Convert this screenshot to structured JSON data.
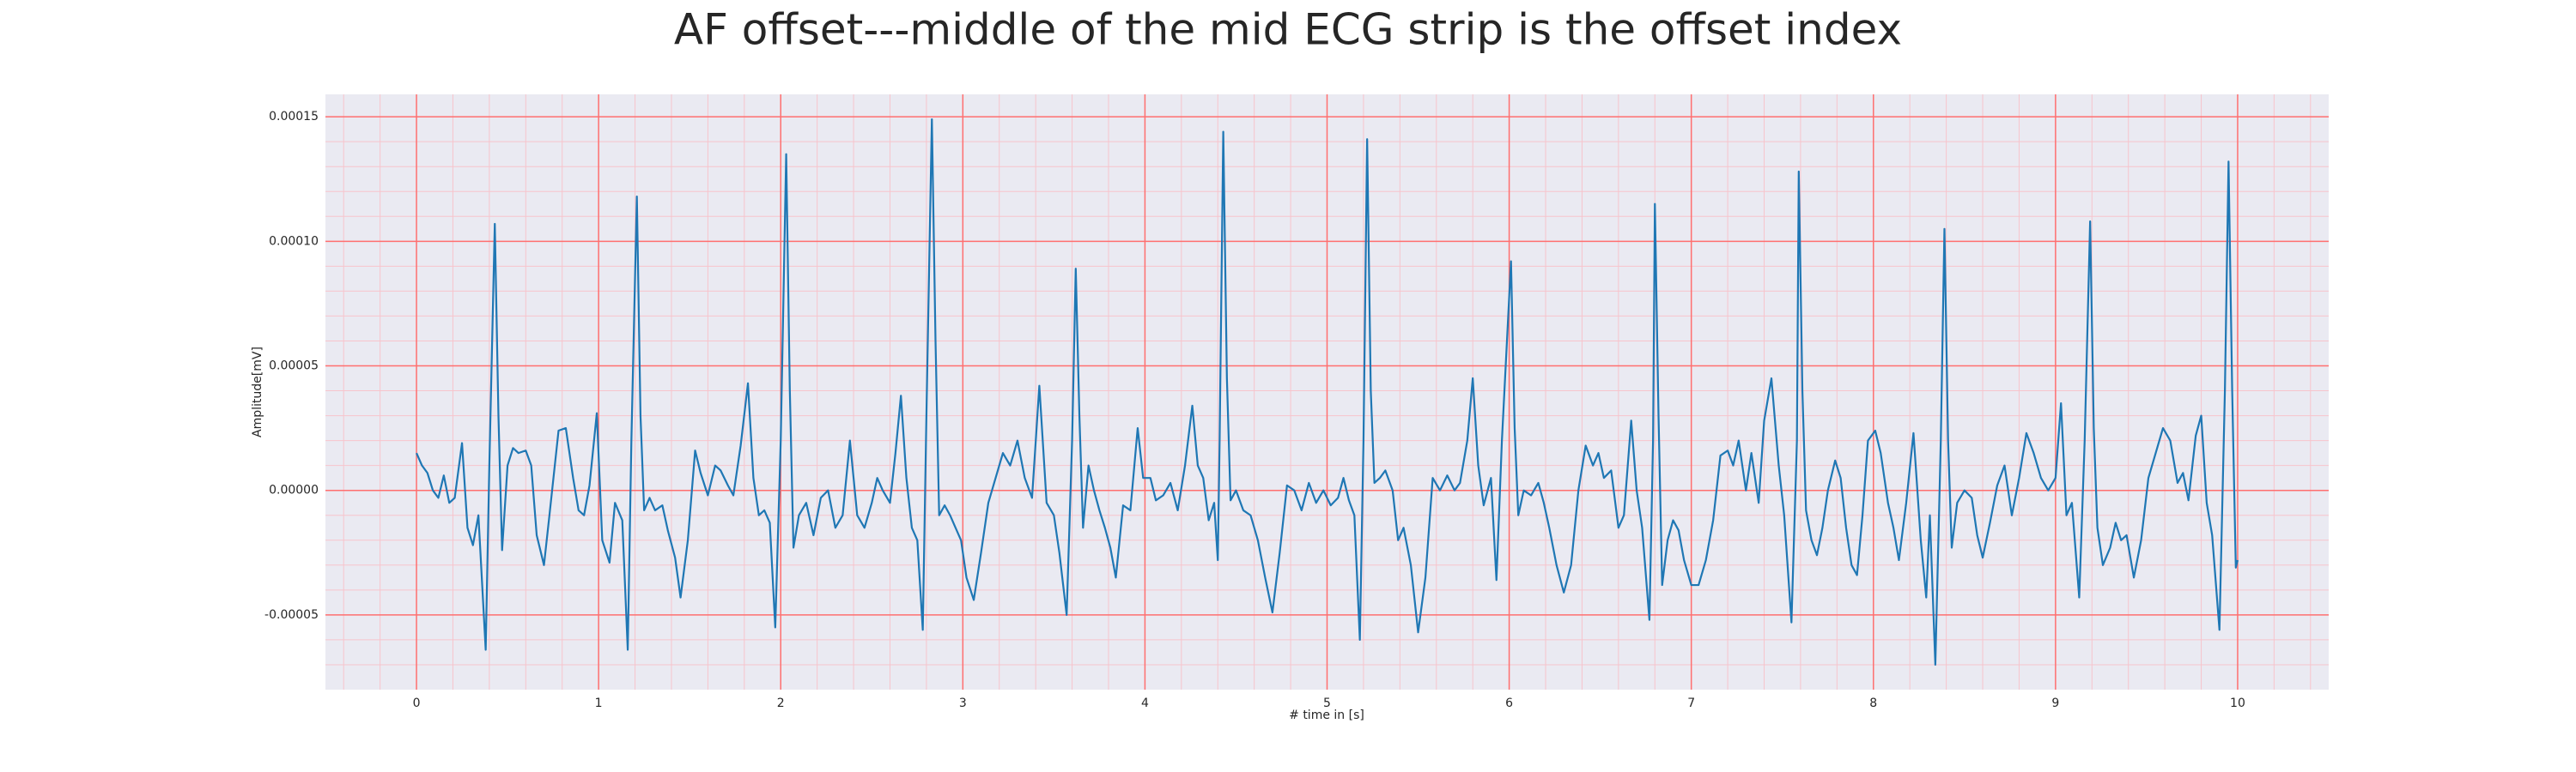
{
  "chart_data": {
    "type": "line",
    "title": "AF offset---middle of the mid ECG strip is the offset index",
    "xlabel": "# time in [s]",
    "ylabel": "Amplitude[mV]",
    "color": "#1f77b4",
    "background": "#eaeaf2",
    "grid": true,
    "grid_color": "#ff6f6f",
    "minor_grid_color": "#f7c4cc",
    "xlim": [
      -0.5,
      10.5
    ],
    "ylim": [
      -8e-05,
      0.000159
    ],
    "xticks": [
      0,
      1,
      2,
      3,
      4,
      5,
      6,
      7,
      8,
      9,
      10
    ],
    "yticks": [
      {
        "value": -5e-05,
        "label": "-0.00005"
      },
      {
        "value": 0,
        "label": "0.00000"
      },
      {
        "value": 5e-05,
        "label": "0.00005"
      },
      {
        "value": 0.0001,
        "label": "0.00010"
      },
      {
        "value": 0.00015,
        "label": "0.00015"
      }
    ],
    "xminorticks": [
      -0.4,
      -0.2,
      0.2,
      0.4,
      0.6,
      0.8,
      1.2,
      1.4,
      1.6,
      1.8,
      2.2,
      2.4,
      2.6,
      2.8,
      3.2,
      3.4,
      3.6,
      3.8,
      4.2,
      4.4,
      4.6,
      4.8,
      5.2,
      5.4,
      5.6,
      5.8,
      6.2,
      6.4,
      6.6,
      6.8,
      7.2,
      7.4,
      7.6,
      7.8,
      8.2,
      8.4,
      8.6,
      8.8,
      9.2,
      9.4,
      9.6,
      9.8,
      10.2,
      10.4
    ],
    "yminorticks": [
      -7e-05,
      -6e-05,
      -4e-05,
      -3e-05,
      -2e-05,
      -1e-05,
      1e-05,
      2e-05,
      3e-05,
      4e-05,
      6e-05,
      7e-05,
      8e-05,
      9e-05,
      0.00011,
      0.00012,
      0.00013,
      0.00014
    ],
    "x": [
      0.0,
      0.03,
      0.06,
      0.09,
      0.12,
      0.15,
      0.18,
      0.21,
      0.25,
      0.28,
      0.31,
      0.34,
      0.38,
      0.4,
      0.43,
      0.45,
      0.47,
      0.5,
      0.53,
      0.56,
      0.6,
      0.63,
      0.66,
      0.7,
      0.73,
      0.78,
      0.82,
      0.86,
      0.89,
      0.92,
      0.95,
      0.99,
      1.02,
      1.06,
      1.09,
      1.13,
      1.16,
      1.18,
      1.21,
      1.23,
      1.25,
      1.28,
      1.31,
      1.35,
      1.38,
      1.42,
      1.45,
      1.49,
      1.53,
      1.56,
      1.6,
      1.64,
      1.67,
      1.71,
      1.74,
      1.78,
      1.82,
      1.85,
      1.88,
      1.91,
      1.94,
      1.97,
      2.0,
      2.03,
      2.05,
      2.07,
      2.1,
      2.14,
      2.18,
      2.22,
      2.26,
      2.3,
      2.34,
      2.38,
      2.42,
      2.46,
      2.5,
      2.53,
      2.56,
      2.6,
      2.63,
      2.66,
      2.69,
      2.72,
      2.75,
      2.78,
      2.8,
      2.83,
      2.85,
      2.87,
      2.9,
      2.93,
      2.96,
      2.99,
      3.02,
      3.06,
      3.1,
      3.14,
      3.18,
      3.22,
      3.26,
      3.3,
      3.34,
      3.38,
      3.42,
      3.46,
      3.5,
      3.53,
      3.57,
      3.6,
      3.62,
      3.64,
      3.66,
      3.69,
      3.72,
      3.75,
      3.78,
      3.81,
      3.84,
      3.88,
      3.92,
      3.96,
      3.99,
      4.03,
      4.06,
      4.1,
      4.14,
      4.18,
      4.22,
      4.26,
      4.29,
      4.32,
      4.35,
      4.38,
      4.4,
      4.41,
      4.43,
      4.45,
      4.47,
      4.5,
      4.54,
      4.58,
      4.62,
      4.66,
      4.7,
      4.74,
      4.78,
      4.82,
      4.86,
      4.9,
      4.94,
      4.98,
      5.02,
      5.06,
      5.09,
      5.12,
      5.15,
      5.18,
      5.2,
      5.22,
      5.24,
      5.26,
      5.29,
      5.32,
      5.36,
      5.39,
      5.42,
      5.46,
      5.5,
      5.54,
      5.58,
      5.62,
      5.66,
      5.7,
      5.73,
      5.77,
      5.8,
      5.83,
      5.86,
      5.9,
      5.93,
      5.96,
      6.01,
      6.03,
      6.05,
      6.08,
      6.12,
      6.16,
      6.19,
      6.22,
      6.26,
      6.3,
      6.34,
      6.38,
      6.42,
      6.46,
      6.49,
      6.52,
      6.56,
      6.6,
      6.63,
      6.67,
      6.7,
      6.73,
      6.77,
      6.79,
      6.8,
      6.82,
      6.84,
      6.87,
      6.9,
      6.93,
      6.96,
      7.0,
      7.04,
      7.08,
      7.12,
      7.16,
      7.2,
      7.23,
      7.26,
      7.3,
      7.33,
      7.37,
      7.4,
      7.44,
      7.48,
      7.51,
      7.55,
      7.58,
      7.59,
      7.61,
      7.63,
      7.66,
      7.69,
      7.72,
      7.75,
      7.79,
      7.82,
      7.85,
      7.88,
      7.91,
      7.94,
      7.97,
      8.01,
      8.04,
      8.08,
      8.11,
      8.14,
      8.18,
      8.22,
      8.26,
      8.29,
      8.31,
      8.34,
      8.37,
      8.39,
      8.41,
      8.43,
      8.46,
      8.5,
      8.54,
      8.57,
      8.6,
      8.64,
      8.68,
      8.72,
      8.76,
      8.8,
      8.84,
      8.88,
      8.92,
      8.96,
      9.0,
      9.03,
      9.06,
      9.09,
      9.13,
      9.16,
      9.19,
      9.21,
      9.23,
      9.26,
      9.3,
      9.33,
      9.36,
      9.39,
      9.43,
      9.47,
      9.51,
      9.55,
      9.59,
      9.63,
      9.67,
      9.7,
      9.73,
      9.77,
      9.8,
      9.83,
      9.86,
      9.9,
      9.93,
      9.95,
      9.97,
      9.99,
      10.0
    ],
    "values": [
      1.5e-05,
      1e-05,
      7e-06,
      0.0,
      -3e-06,
      6e-06,
      -5e-06,
      -3e-06,
      1.9e-05,
      -1.5e-05,
      -2.2e-05,
      -1e-05,
      -6.4e-05,
      1e-05,
      0.000107,
      3e-05,
      -2.4e-05,
      1e-05,
      1.7e-05,
      1.5e-05,
      1.6e-05,
      1e-05,
      -1.8e-05,
      -3e-05,
      -1e-05,
      2.4e-05,
      2.5e-05,
      5e-06,
      -8e-06,
      -1e-05,
      2e-06,
      3.1e-05,
      -2e-05,
      -2.9e-05,
      -5e-06,
      -1.2e-05,
      -6.4e-05,
      2e-05,
      0.000118,
      3e-05,
      -8e-06,
      -3e-06,
      -8e-06,
      -6e-06,
      -1.6e-05,
      -2.7e-05,
      -4.3e-05,
      -2e-05,
      1.6e-05,
      7e-06,
      -2e-06,
      1e-05,
      8e-06,
      2e-06,
      -2e-06,
      1.8e-05,
      4.3e-05,
      5e-06,
      -1e-05,
      -8e-06,
      -1.3e-05,
      -5.5e-05,
      2e-05,
      0.000135,
      4e-05,
      -2.3e-05,
      -1e-05,
      -5e-06,
      -1.8e-05,
      -3e-06,
      0.0,
      -1.5e-05,
      -1e-05,
      2e-05,
      -1e-05,
      -1.5e-05,
      -5e-06,
      5e-06,
      0.0,
      -5e-06,
      1.5e-05,
      3.8e-05,
      5e-06,
      -1.5e-05,
      -2e-05,
      -5.6e-05,
      3e-05,
      0.000149,
      6e-05,
      -1e-05,
      -6e-06,
      -1e-05,
      -1.5e-05,
      -2e-05,
      -3.5e-05,
      -4.4e-05,
      -2.5e-05,
      -5e-06,
      5e-06,
      1.5e-05,
      1e-05,
      2e-05,
      5e-06,
      -3e-06,
      4.2e-05,
      -5e-06,
      -1e-05,
      -2.5e-05,
      -5e-05,
      2e-05,
      8.9e-05,
      3e-05,
      -1.5e-05,
      1e-05,
      0.0,
      -8e-06,
      -1.5e-05,
      -2.3e-05,
      -3.5e-05,
      -6e-06,
      -8e-06,
      2.5e-05,
      5e-06,
      5e-06,
      -4e-06,
      -2e-06,
      3e-06,
      -8e-06,
      1e-05,
      3.4e-05,
      1e-05,
      5e-06,
      -1.2e-05,
      -5e-06,
      -2.8e-05,
      2e-05,
      0.000144,
      4.5e-05,
      -4e-06,
      0.0,
      -8e-06,
      -1e-05,
      -2e-05,
      -3.5e-05,
      -4.9e-05,
      -2.5e-05,
      2e-06,
      0.0,
      -8e-06,
      3e-06,
      -5e-06,
      0.0,
      -6e-06,
      -3e-06,
      5e-06,
      -4e-06,
      -1e-05,
      -6e-05,
      2e-05,
      0.000141,
      4e-05,
      3e-06,
      5e-06,
      8e-06,
      0.0,
      -2e-05,
      -1.5e-05,
      -3e-05,
      -5.7e-05,
      -3.5e-05,
      5e-06,
      0.0,
      6e-06,
      0.0,
      3e-06,
      2e-05,
      4.5e-05,
      1e-05,
      -6e-06,
      5e-06,
      -3.6e-05,
      2e-05,
      9.2e-05,
      2.5e-05,
      -1e-05,
      0.0,
      -2e-06,
      3e-06,
      -5e-06,
      -1.5e-05,
      -3e-05,
      -4.1e-05,
      -3e-05,
      0.0,
      1.8e-05,
      1e-05,
      1.5e-05,
      5e-06,
      8e-06,
      -1.5e-05,
      -1e-05,
      2.8e-05,
      0.0,
      -1.5e-05,
      -5.2e-05,
      2e-05,
      0.000115,
      3e-05,
      -3.8e-05,
      -2e-05,
      -1.2e-05,
      -1.6e-05,
      -2.8e-05,
      -3.8e-05,
      -3.8e-05,
      -2.8e-05,
      -1.2e-05,
      1.4e-05,
      1.6e-05,
      1e-05,
      2e-05,
      0.0,
      1.5e-05,
      -5e-06,
      2.8e-05,
      4.5e-05,
      1e-05,
      -1e-05,
      -5.3e-05,
      2e-05,
      0.000128,
      4e-05,
      -8e-06,
      -2e-05,
      -2.6e-05,
      -1.5e-05,
      0.0,
      1.2e-05,
      5e-06,
      -1.5e-05,
      -3e-05,
      -3.4e-05,
      -1e-05,
      2e-05,
      2.4e-05,
      1.5e-05,
      -5e-06,
      -1.5e-05,
      -2.8e-05,
      -5e-06,
      2.3e-05,
      -2e-05,
      -4.3e-05,
      -1e-05,
      -7e-05,
      2e-05,
      0.000105,
      2e-05,
      -2.3e-05,
      -5e-06,
      0.0,
      -3e-06,
      -1.8e-05,
      -2.7e-05,
      -1.3e-05,
      2e-06,
      1e-05,
      -1e-05,
      5e-06,
      2.3e-05,
      1.5e-05,
      5e-06,
      0.0,
      5e-06,
      3.5e-05,
      -1e-05,
      -5e-06,
      -4.3e-05,
      2e-05,
      0.000108,
      2.5e-05,
      -1.5e-05,
      -3e-05,
      -2.3e-05,
      -1.3e-05,
      -2e-05,
      -1.8e-05,
      -3.5e-05,
      -2e-05,
      5e-06,
      1.5e-05,
      2.5e-05,
      2e-05,
      3e-06,
      7e-06,
      -4e-06,
      2.2e-05,
      3e-05,
      -5e-06,
      -1.8e-05,
      -5.6e-05,
      4e-05,
      0.000132,
      4e-05,
      -3.1e-05,
      -2.8e-05
    ]
  }
}
